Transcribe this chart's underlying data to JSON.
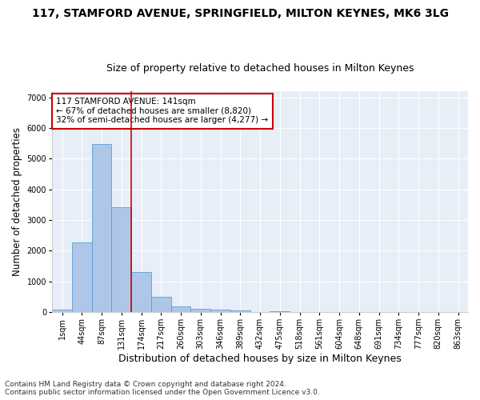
{
  "title1": "117, STAMFORD AVENUE, SPRINGFIELD, MILTON KEYNES, MK6 3LG",
  "title2": "Size of property relative to detached houses in Milton Keynes",
  "xlabel": "Distribution of detached houses by size in Milton Keynes",
  "ylabel": "Number of detached properties",
  "footnote": "Contains HM Land Registry data © Crown copyright and database right 2024.\nContains public sector information licensed under the Open Government Licence v3.0.",
  "bin_labels": [
    "1sqm",
    "44sqm",
    "87sqm",
    "131sqm",
    "174sqm",
    "217sqm",
    "260sqm",
    "303sqm",
    "346sqm",
    "389sqm",
    "432sqm",
    "475sqm",
    "518sqm",
    "561sqm",
    "604sqm",
    "648sqm",
    "691sqm",
    "734sqm",
    "777sqm",
    "820sqm",
    "863sqm"
  ],
  "bar_values": [
    80,
    2280,
    5480,
    3420,
    1300,
    490,
    195,
    100,
    80,
    55,
    0,
    35,
    0,
    0,
    0,
    0,
    0,
    0,
    0,
    0,
    0
  ],
  "bar_color": "#aec6e8",
  "bar_edge_color": "#5a9fd4",
  "vline_color": "#cc0000",
  "ylim": [
    0,
    7200
  ],
  "yticks": [
    0,
    1000,
    2000,
    3000,
    4000,
    5000,
    6000,
    7000
  ],
  "annotation_title": "117 STAMFORD AVENUE: 141sqm",
  "annotation_line1": "← 67% of detached houses are smaller (8,820)",
  "annotation_line2": "32% of semi-detached houses are larger (4,277) →",
  "annotation_box_color": "#ffffff",
  "annotation_box_edge": "#cc0000",
  "bg_color": "#e8eef8",
  "grid_color": "#ffffff",
  "fig_bg_color": "#ffffff",
  "title1_fontsize": 10,
  "title2_fontsize": 9,
  "axis_label_fontsize": 8.5,
  "tick_fontsize": 7,
  "annotation_fontsize": 7.5,
  "footnote_fontsize": 6.5,
  "vline_bin_index": 3
}
